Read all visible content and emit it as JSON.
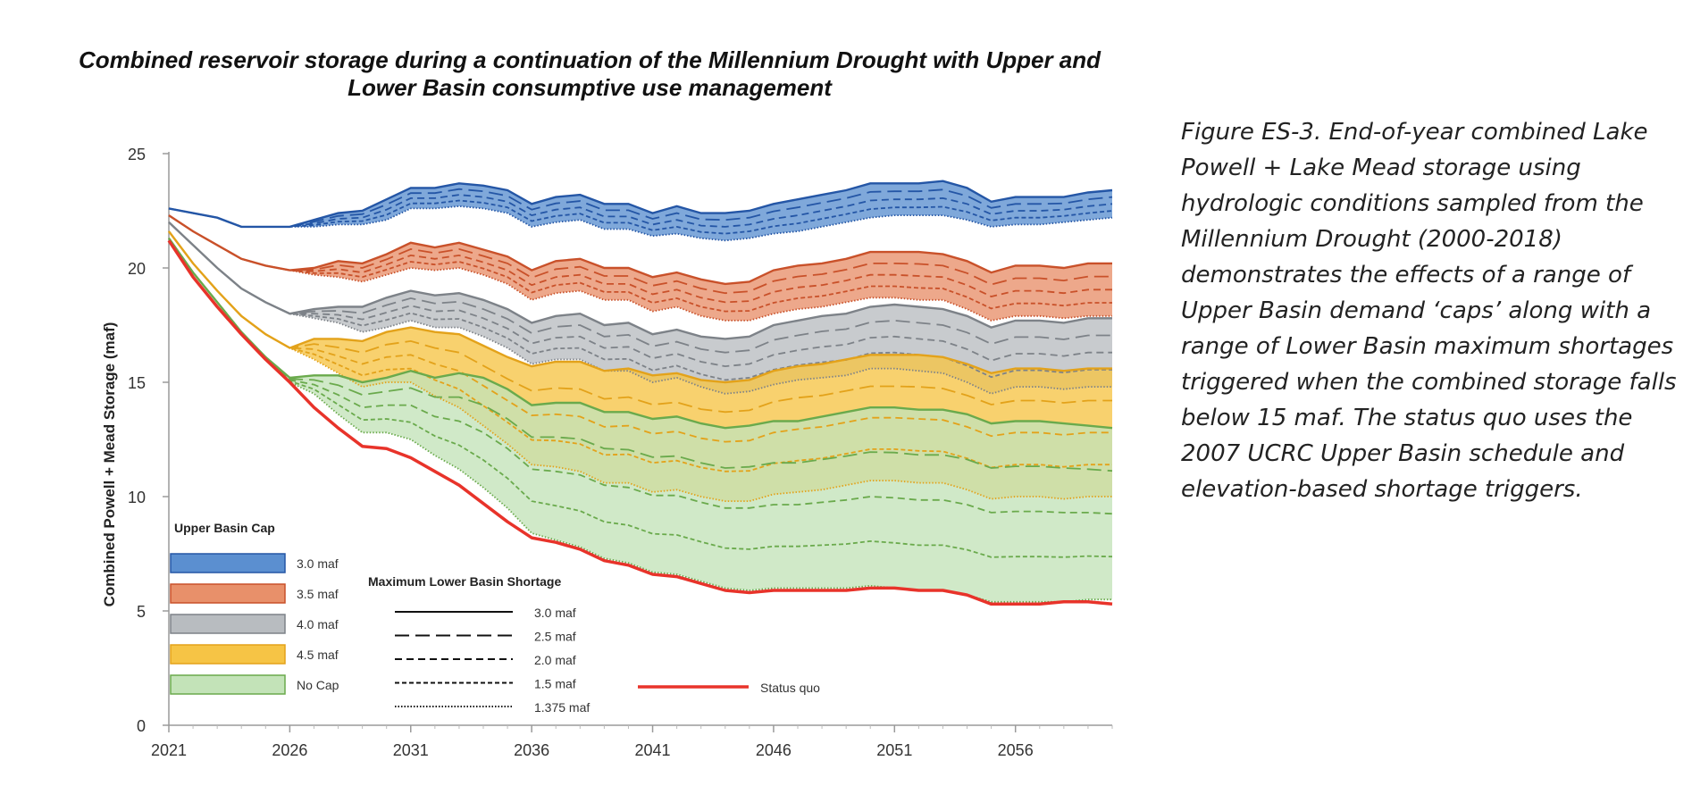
{
  "caption": "Figure ES-3. End-of-year combined Lake Powell + Lake Mead storage using hydrologic conditions sampled from the Millennium Drought (2000-2018) demonstrates the effects of a range of Upper Basin demand ‘caps’ along with a range of Lower Basin maximum shortages triggered when the combined storage falls below 15 maf. The status quo uses the 2007 UCRC Upper Basin schedule and elevation-based shortage triggers.",
  "chart_data": {
    "type": "area",
    "title": "Combined reservoir storage during a continuation of the Millennium Drought with Upper and Lower Basin consumptive use management",
    "xlabel": "",
    "ylabel": "Combined  Powell + Mead Storage (maf)",
    "xlim": [
      2021,
      2060
    ],
    "ylim": [
      0,
      25
    ],
    "xticks": [
      2021,
      2026,
      2031,
      2036,
      2041,
      2046,
      2051,
      2056
    ],
    "yticks": [
      0,
      5,
      10,
      15,
      20,
      25
    ],
    "legend_upper_title": "Upper Basin Cap",
    "legend_lower_title": "Maximum Lower Basin Shortage",
    "years": [
      2021,
      2022,
      2023,
      2024,
      2025,
      2026,
      2027,
      2028,
      2029,
      2030,
      2031,
      2032,
      2033,
      2034,
      2035,
      2036,
      2037,
      2038,
      2039,
      2040,
      2041,
      2042,
      2043,
      2044,
      2045,
      2046,
      2047,
      2048,
      2049,
      2050,
      2051,
      2052,
      2053,
      2054,
      2055,
      2056,
      2057,
      2058,
      2059,
      2060
    ],
    "caps": [
      {
        "name": "3.0 maf",
        "fill": "#5b8fd0",
        "line": "#2456a6",
        "upper": [
          22.6,
          22.4,
          22.2,
          21.8,
          21.8,
          21.8,
          22.1,
          22.4,
          22.5,
          23.0,
          23.5,
          23.5,
          23.7,
          23.6,
          23.4,
          22.8,
          23.1,
          23.2,
          22.8,
          22.8,
          22.4,
          22.7,
          22.4,
          22.4,
          22.5,
          22.8,
          23.0,
          23.2,
          23.4,
          23.7,
          23.7,
          23.7,
          23.8,
          23.5,
          22.9,
          23.1,
          23.1,
          23.1,
          23.3,
          23.4
        ],
        "lower": [
          22.6,
          22.4,
          22.2,
          21.8,
          21.8,
          21.8,
          21.8,
          21.9,
          21.9,
          22.1,
          22.6,
          22.6,
          22.7,
          22.6,
          22.4,
          21.8,
          22.0,
          22.1,
          21.7,
          21.7,
          21.4,
          21.5,
          21.3,
          21.2,
          21.3,
          21.5,
          21.6,
          21.8,
          22.0,
          22.2,
          22.3,
          22.3,
          22.3,
          22.1,
          21.8,
          21.9,
          21.9,
          22.0,
          22.1,
          22.2
        ]
      },
      {
        "name": "3.5 maf",
        "fill": "#e8906a",
        "line": "#c9512a",
        "upper": [
          22.3,
          21.6,
          21.0,
          20.4,
          20.1,
          19.9,
          20.0,
          20.3,
          20.2,
          20.6,
          21.1,
          20.9,
          21.1,
          20.8,
          20.5,
          19.9,
          20.3,
          20.4,
          20.0,
          20.0,
          19.6,
          19.8,
          19.5,
          19.3,
          19.4,
          19.9,
          20.1,
          20.2,
          20.4,
          20.7,
          20.7,
          20.7,
          20.6,
          20.3,
          19.8,
          20.1,
          20.1,
          20.0,
          20.2,
          20.2
        ],
        "lower": [
          22.3,
          21.6,
          21.0,
          20.4,
          20.1,
          19.9,
          19.7,
          19.6,
          19.4,
          19.7,
          20.0,
          19.9,
          20.0,
          19.7,
          19.3,
          18.6,
          18.9,
          19.0,
          18.6,
          18.6,
          18.1,
          18.3,
          17.9,
          17.7,
          17.7,
          18.0,
          18.2,
          18.3,
          18.5,
          18.7,
          18.7,
          18.6,
          18.6,
          18.2,
          17.7,
          17.9,
          17.9,
          17.8,
          17.9,
          17.9
        ]
      },
      {
        "name": "4.0 maf",
        "fill": "#b8bcc0",
        "line": "#7d8288",
        "upper": [
          22.0,
          21.0,
          20.0,
          19.1,
          18.5,
          18.0,
          18.2,
          18.3,
          18.3,
          18.7,
          19.0,
          18.8,
          18.9,
          18.6,
          18.2,
          17.6,
          17.9,
          18.0,
          17.5,
          17.6,
          17.1,
          17.3,
          17.0,
          16.9,
          17.0,
          17.5,
          17.7,
          17.9,
          18.0,
          18.3,
          18.4,
          18.3,
          18.2,
          17.9,
          17.4,
          17.7,
          17.7,
          17.6,
          17.8,
          17.8
        ],
        "lower": [
          22.0,
          21.0,
          20.0,
          19.1,
          18.5,
          18.0,
          17.8,
          17.6,
          17.2,
          17.4,
          17.7,
          17.4,
          17.4,
          17.0,
          16.5,
          15.8,
          16.0,
          16.0,
          15.5,
          15.5,
          15.0,
          15.2,
          14.8,
          14.5,
          14.6,
          14.9,
          15.1,
          15.2,
          15.3,
          15.6,
          15.6,
          15.5,
          15.4,
          15.0,
          14.5,
          14.8,
          14.8,
          14.7,
          14.8,
          14.8
        ]
      },
      {
        "name": "4.5 maf",
        "fill": "#f6c445",
        "line": "#e3a21a",
        "upper": [
          21.6,
          20.2,
          19.0,
          17.9,
          17.1,
          16.5,
          16.9,
          16.9,
          16.8,
          17.2,
          17.4,
          17.2,
          17.1,
          16.6,
          16.1,
          15.7,
          15.9,
          15.9,
          15.5,
          15.6,
          15.3,
          15.4,
          15.1,
          15.0,
          15.1,
          15.5,
          15.7,
          15.8,
          16.0,
          16.2,
          16.2,
          16.2,
          16.1,
          15.8,
          15.4,
          15.6,
          15.6,
          15.5,
          15.6,
          15.6
        ],
        "lower": [
          21.6,
          20.2,
          19.0,
          17.9,
          17.1,
          16.5,
          16.0,
          15.4,
          14.8,
          15.0,
          15.0,
          14.4,
          13.9,
          13.1,
          12.3,
          11.4,
          11.3,
          11.1,
          10.6,
          10.6,
          10.2,
          10.3,
          10.0,
          9.8,
          9.8,
          10.1,
          10.2,
          10.3,
          10.5,
          10.7,
          10.7,
          10.6,
          10.6,
          10.3,
          9.9,
          10.0,
          10.0,
          9.9,
          10.0,
          10.0
        ]
      },
      {
        "name": "No Cap",
        "fill": "#c3e3b8",
        "line": "#6aaa4c",
        "upper": [
          21.3,
          19.8,
          18.5,
          17.2,
          16.1,
          15.2,
          15.3,
          15.3,
          15.0,
          15.2,
          15.5,
          15.2,
          15.4,
          15.2,
          14.7,
          14.0,
          14.1,
          14.1,
          13.7,
          13.7,
          13.4,
          13.5,
          13.2,
          13.0,
          13.1,
          13.3,
          13.3,
          13.5,
          13.7,
          13.9,
          13.9,
          13.8,
          13.8,
          13.6,
          13.2,
          13.3,
          13.3,
          13.2,
          13.1,
          13.0
        ],
        "lower": [
          21.3,
          19.8,
          18.5,
          17.2,
          16.1,
          15.0,
          14.5,
          13.6,
          12.8,
          12.8,
          12.5,
          11.8,
          11.2,
          10.4,
          9.5,
          8.4,
          8.1,
          7.8,
          7.3,
          7.1,
          6.7,
          6.6,
          6.3,
          6.0,
          5.9,
          6.0,
          6.0,
          6.0,
          6.0,
          6.1,
          6.0,
          5.9,
          5.9,
          5.7,
          5.4,
          5.4,
          5.4,
          5.4,
          5.5,
          5.5
        ]
      }
    ],
    "shortage_styles": [
      {
        "name": "3.0 maf",
        "dash": ""
      },
      {
        "name": "2.5 maf",
        "dash": "16 7"
      },
      {
        "name": "2.0 maf",
        "dash": "8 5"
      },
      {
        "name": "1.5 maf",
        "dash": "5 3"
      },
      {
        "name": "1.375 maf",
        "dash": "1.5 2"
      }
    ],
    "status_quo": {
      "name": "Status quo",
      "color": "#e8332a",
      "values": [
        21.2,
        19.6,
        18.3,
        17.1,
        16.0,
        15.0,
        13.9,
        13.0,
        12.2,
        12.1,
        11.7,
        11.1,
        10.5,
        9.7,
        8.9,
        8.2,
        8.0,
        7.7,
        7.2,
        7.0,
        6.6,
        6.5,
        6.2,
        5.9,
        5.8,
        5.9,
        5.9,
        5.9,
        5.9,
        6.0,
        6.0,
        5.9,
        5.9,
        5.7,
        5.3,
        5.3,
        5.3,
        5.4,
        5.4,
        5.3
      ]
    }
  }
}
